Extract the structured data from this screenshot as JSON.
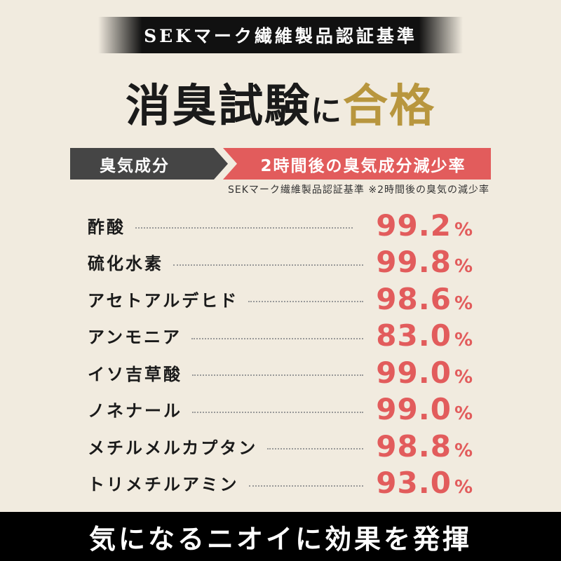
{
  "banner": "SEKマーク繊維製品認証基準",
  "title": {
    "main": "消臭試験",
    "particle": "に",
    "highlight": "合格"
  },
  "header": {
    "left": "臭気成分",
    "right": "2時間後の臭気成分減少率"
  },
  "note": "SEKマーク繊維製品認証基準 ※2時間後の臭気の減少率",
  "rows": [
    {
      "label": "酢酸",
      "value": "99.2",
      "unit": "%"
    },
    {
      "label": "硫化水素",
      "value": "99.8",
      "unit": "%"
    },
    {
      "label": "アセトアルデヒド",
      "value": "98.6",
      "unit": "%"
    },
    {
      "label": "アンモニア",
      "value": "83.0",
      "unit": "%"
    },
    {
      "label": "イソ吉草酸",
      "value": "99.0",
      "unit": "%"
    },
    {
      "label": "ノネナール",
      "value": "99.0",
      "unit": "%"
    },
    {
      "label": "メチルメルカプタン",
      "value": "98.8",
      "unit": "%"
    },
    {
      "label": "トリメチルアミン",
      "value": "93.0",
      "unit": "%"
    }
  ],
  "footer": "気になるニオイに効果を発揮",
  "colors": {
    "background": "#f1ebdf",
    "accent_red": "#e25c5c",
    "gold": "#b8963e",
    "header_gray": "#454545"
  }
}
